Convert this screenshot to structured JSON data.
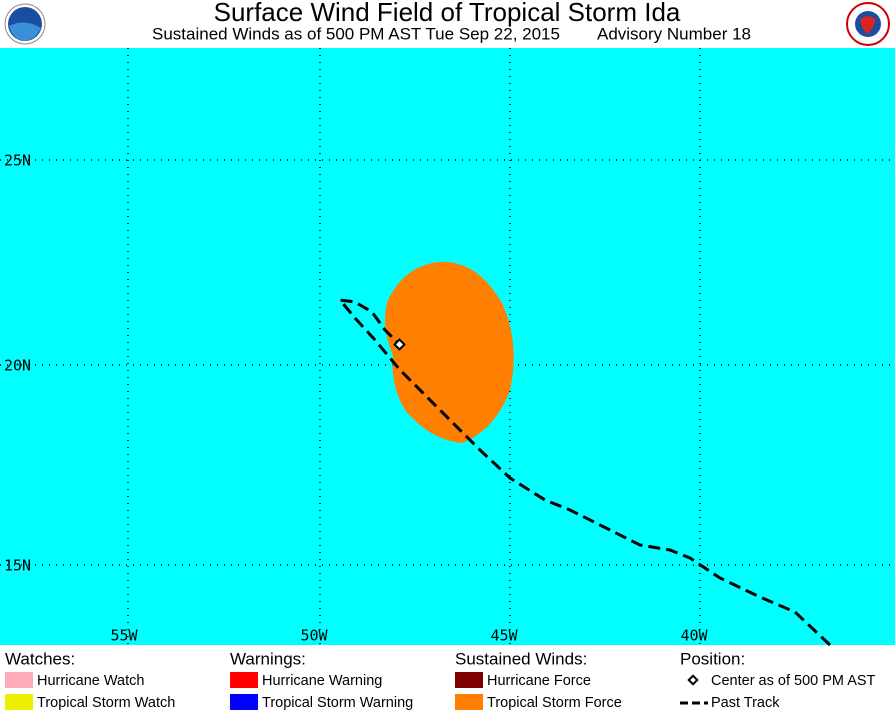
{
  "header": {
    "title": "Surface Wind Field of Tropical Storm Ida",
    "subtitle": "Sustained Winds as of 500 PM AST Tue Sep 22, 2015",
    "advisory": "Advisory Number 18"
  },
  "map": {
    "lon_labels": [
      "55W",
      "50W",
      "45W",
      "40W"
    ],
    "lat_labels": [
      "25N",
      "20N",
      "15N"
    ]
  },
  "legend": {
    "watches": {
      "heading": "Watches:",
      "items": [
        "Hurricane Watch",
        "Tropical Storm Watch"
      ]
    },
    "warnings": {
      "heading": "Warnings:",
      "items": [
        "Hurricane Warning",
        "Tropical Storm Warning"
      ]
    },
    "winds": {
      "heading": "Sustained Winds:",
      "items": [
        "Hurricane Force",
        "Tropical Storm Force"
      ]
    },
    "position": {
      "heading": "Position:",
      "items": [
        "Center as of 500 PM AST",
        "Past Track"
      ]
    }
  }
}
